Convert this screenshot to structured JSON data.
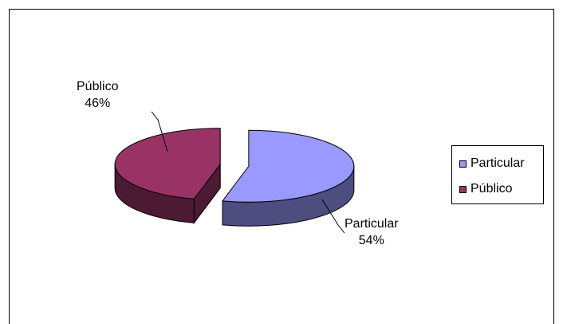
{
  "chart_data": {
    "type": "pie",
    "title": "",
    "slices": [
      {
        "name": "Particular",
        "value": 54,
        "label": "54%",
        "color": "#9999ff",
        "side_color": "#4d4d80",
        "edge_color": "#000000"
      },
      {
        "name": "Público",
        "value": 46,
        "label": "46%",
        "color": "#993366",
        "side_color": "#4d1a33",
        "edge_color": "#000000"
      }
    ],
    "three_d": true,
    "exploded": true,
    "legend": "right",
    "legend_entries": [
      "Particular",
      "Público"
    ]
  }
}
